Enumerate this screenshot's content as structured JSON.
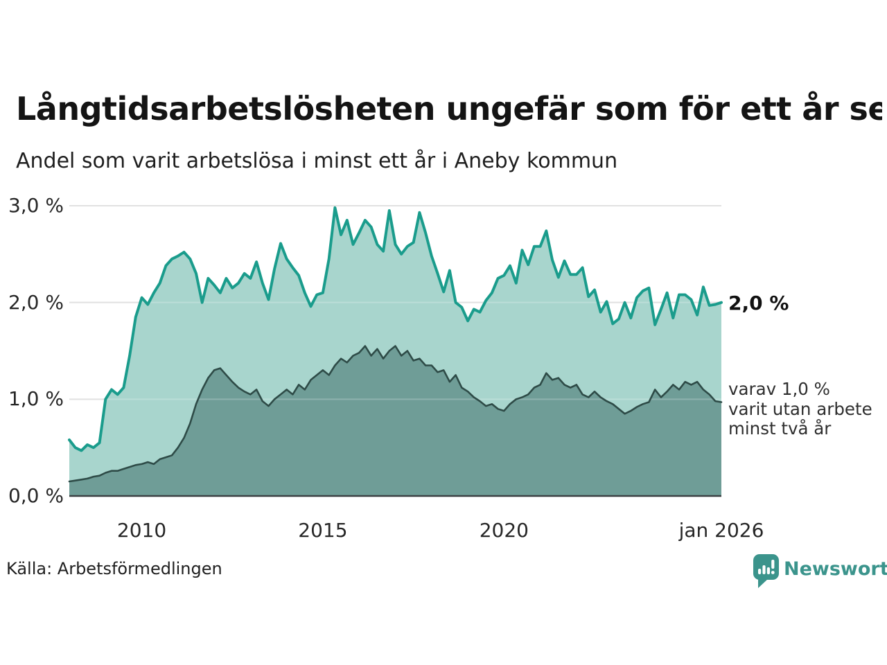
{
  "header": {
    "title": "Långtidsarbetslösheten ungefär som för ett år sen",
    "subtitle": "Andel som varit arbetslösa i minst ett år i Aneby kommun"
  },
  "annotations": {
    "latest_total": "2,0 %",
    "latest_two_years": [
      "varav 1,0 %",
      "varit utan arbete",
      "minst två år"
    ]
  },
  "footer": {
    "source": "Källa: Arbetsförmedlingen",
    "brand": "Newsworthy",
    "brand_color": "#3b948c"
  },
  "chart_data": {
    "type": "area",
    "title": "Långtidsarbetslösheten ungefär som för ett år sen",
    "subtitle": "Andel som varit arbetslösa i minst ett år i Aneby kommun",
    "region": "Aneby kommun",
    "x_unit": "decimal-year, monthly-ish resolution (2-month steps)",
    "x_start": 2008.0,
    "x_end": 2026.0,
    "x_step_months": 2,
    "ylim": [
      0,
      3.0
    ],
    "grid": "horizontal",
    "legend_position": "right-annotations",
    "y_ticks": [
      {
        "value": 0.0,
        "label": "0,0 %"
      },
      {
        "value": 1.0,
        "label": "1,0 %"
      },
      {
        "value": 2.0,
        "label": "2,0 %"
      },
      {
        "value": 3.0,
        "label": "3,0 %"
      }
    ],
    "x_ticks": [
      {
        "value": 2010,
        "label": "2010"
      },
      {
        "value": 2015,
        "label": "2015"
      },
      {
        "value": 2020,
        "label": "2020"
      },
      {
        "value": 2026,
        "label": "jan 2026"
      }
    ],
    "series": [
      {
        "name": "Andel arbetslösa minst ett år",
        "end_value_label": "2,0 %",
        "line_color": "#1a9c8c",
        "fill_color": "#a8d5cd",
        "line_width": 4,
        "values": [
          0.58,
          0.5,
          0.47,
          0.53,
          0.5,
          0.55,
          1.0,
          1.1,
          1.05,
          1.12,
          1.45,
          1.85,
          2.05,
          1.98,
          2.1,
          2.2,
          2.38,
          2.45,
          2.48,
          2.52,
          2.45,
          2.3,
          2.0,
          2.25,
          2.18,
          2.1,
          2.25,
          2.15,
          2.2,
          2.3,
          2.25,
          2.42,
          2.2,
          2.03,
          2.35,
          2.61,
          2.45,
          2.36,
          2.28,
          2.1,
          1.96,
          2.08,
          2.1,
          2.45,
          2.98,
          2.7,
          2.85,
          2.6,
          2.72,
          2.85,
          2.78,
          2.6,
          2.53,
          2.95,
          2.6,
          2.5,
          2.58,
          2.62,
          2.93,
          2.72,
          2.48,
          2.3,
          2.11,
          2.33,
          2.0,
          1.95,
          1.81,
          1.93,
          1.9,
          2.02,
          2.1,
          2.25,
          2.28,
          2.38,
          2.2,
          2.54,
          2.39,
          2.58,
          2.58,
          2.74,
          2.44,
          2.26,
          2.43,
          2.29,
          2.29,
          2.36,
          2.06,
          2.13,
          1.9,
          2.01,
          1.78,
          1.83,
          2.0,
          1.84,
          2.05,
          2.12,
          2.15,
          1.77,
          1.93,
          2.1,
          1.84,
          2.08,
          2.08,
          2.03,
          1.87,
          2.16,
          1.97,
          1.98,
          2.0
        ]
      },
      {
        "name": "varav utan arbete minst två år",
        "end_value_label": "1,0 %",
        "line_color": "#2e4b47",
        "fill_color": "#6f9d97",
        "line_width": 2.6,
        "values": [
          0.15,
          0.16,
          0.17,
          0.18,
          0.2,
          0.21,
          0.24,
          0.26,
          0.26,
          0.28,
          0.3,
          0.32,
          0.33,
          0.35,
          0.33,
          0.38,
          0.4,
          0.42,
          0.5,
          0.6,
          0.75,
          0.95,
          1.1,
          1.22,
          1.3,
          1.32,
          1.25,
          1.18,
          1.12,
          1.08,
          1.05,
          1.1,
          0.98,
          0.93,
          1.0,
          1.05,
          1.1,
          1.05,
          1.15,
          1.1,
          1.2,
          1.25,
          1.3,
          1.25,
          1.35,
          1.42,
          1.38,
          1.45,
          1.48,
          1.55,
          1.45,
          1.52,
          1.42,
          1.5,
          1.55,
          1.45,
          1.5,
          1.4,
          1.42,
          1.35,
          1.35,
          1.28,
          1.3,
          1.18,
          1.25,
          1.12,
          1.08,
          1.02,
          0.98,
          0.93,
          0.95,
          0.9,
          0.88,
          0.95,
          1.0,
          1.02,
          1.05,
          1.12,
          1.15,
          1.27,
          1.2,
          1.22,
          1.15,
          1.12,
          1.15,
          1.05,
          1.02,
          1.08,
          1.02,
          0.98,
          0.95,
          0.9,
          0.85,
          0.88,
          0.92,
          0.95,
          0.97,
          1.1,
          1.02,
          1.08,
          1.15,
          1.1,
          1.18,
          1.15,
          1.18,
          1.1,
          1.05,
          0.98,
          0.97
        ]
      }
    ]
  }
}
